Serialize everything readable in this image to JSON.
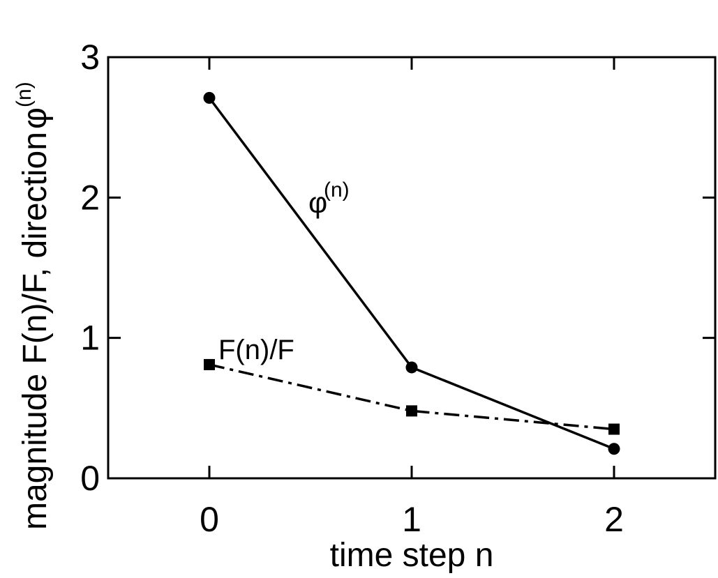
{
  "chart_data": {
    "type": "line",
    "x": [
      0,
      1,
      2
    ],
    "xlim": [
      -0.5,
      2.5
    ],
    "ylim": [
      0,
      3
    ],
    "xticks": [
      "0",
      "1",
      "2"
    ],
    "yticks": [
      "0",
      "1",
      "2",
      "3"
    ],
    "xlabel": "time step n",
    "ylabel": "magnitude F(n)/F, direction",
    "ylabel_symbol": "φ",
    "ylabel_superscript": "(n)",
    "grid": false,
    "series": [
      {
        "values": [
          2.71,
          0.79,
          0.21
        ],
        "marker": "circle",
        "line_style": "solid",
        "color": "#000000",
        "label_symbol": "φ",
        "label_superscript": "(n)"
      },
      {
        "values": [
          0.81,
          0.48,
          0.35
        ],
        "marker": "square",
        "line_style": "dash-dot",
        "color": "#000000",
        "label": "F(n)/F"
      }
    ]
  }
}
